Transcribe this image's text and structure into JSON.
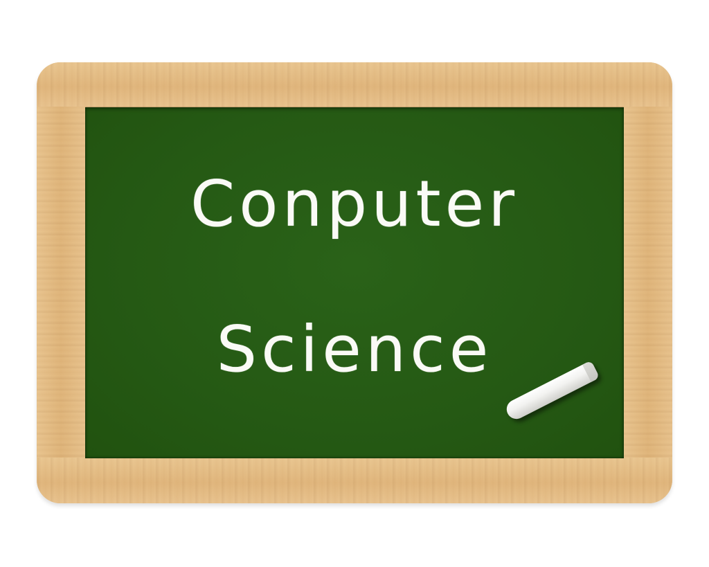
{
  "board": {
    "line1": "Conputer",
    "line2": "Science"
  },
  "colors": {
    "board_green": "#255914",
    "frame_wood": "#e2b87f",
    "chalk": "#fafaf6"
  },
  "icons": {
    "chalk": "chalk-stick-icon"
  }
}
